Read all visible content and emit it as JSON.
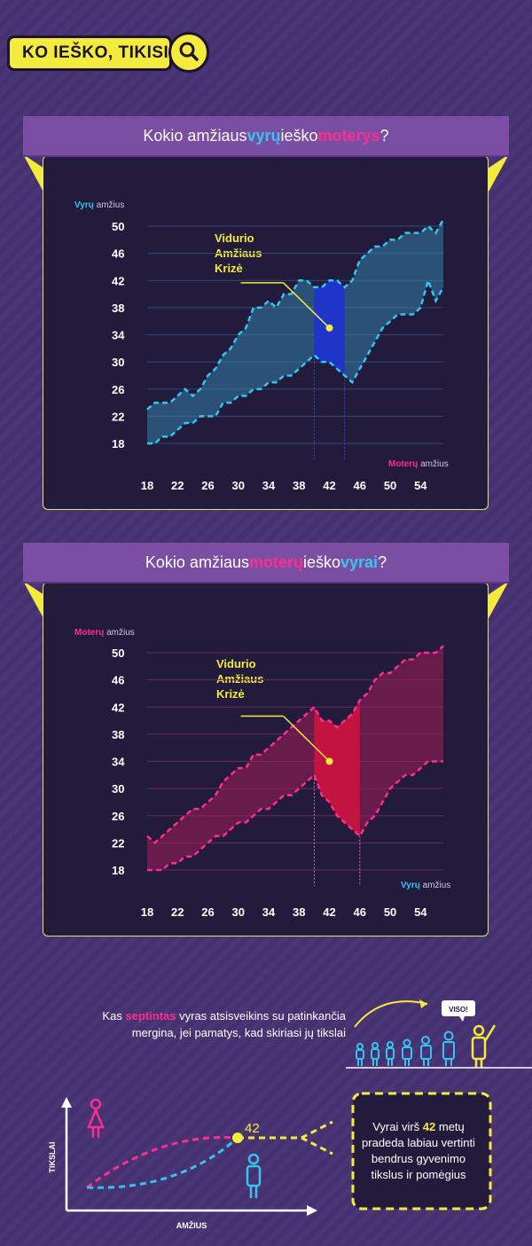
{
  "header": {
    "title": "KO IEŠKO, TIKISI",
    "search_icon": "search-icon"
  },
  "colors": {
    "blue": "#36c5f0",
    "pink": "#ff2d8e",
    "yellow": "#f4eb3d",
    "panel": "#231b3b",
    "banner": "#7a4fa3"
  },
  "chart1": {
    "banner": {
      "part1": "Kokio amžiaus ",
      "hl1": "vyrų",
      "part2": " ieško ",
      "hl2": "moterys",
      "part3": "?"
    },
    "ylabel_hl": "Vyrų",
    "ylabel_rest": " amžius",
    "xlabel_hl": "Moterų",
    "xlabel_rest": " amžius",
    "annotation": [
      "Vidurio",
      "Amžiaus",
      "Krizė"
    ]
  },
  "chart2": {
    "banner": {
      "part1": "Kokio amžiaus ",
      "hl1": "moterų",
      "part2": " ieško ",
      "hl2": "vyrai",
      "part3": "?"
    },
    "ylabel_hl": "Moterų",
    "ylabel_rest": " amžius",
    "xlabel_hl": "Vyrų",
    "xlabel_rest": " amžius",
    "annotation": [
      "Vidurio",
      "Amžiaus",
      "Krizė"
    ]
  },
  "chart_data": [
    {
      "type": "area",
      "title": "Kokio amžiaus vyrų ieško moterys?",
      "xlabel": "Moterų amžius",
      "ylabel": "Vyrų amžius",
      "xticks": [
        18,
        22,
        26,
        30,
        34,
        38,
        42,
        46,
        50,
        54
      ],
      "yticks": [
        18,
        22,
        26,
        30,
        34,
        38,
        42,
        46,
        50
      ],
      "xlim": [
        18,
        57
      ],
      "ylim": [
        18,
        50
      ],
      "highlight_range": [
        40,
        44
      ],
      "annotation_point": [
        42,
        35
      ],
      "series": [
        {
          "name": "upper",
          "x": [
            18,
            19,
            20,
            21,
            22,
            23,
            24,
            25,
            26,
            27,
            28,
            29,
            30,
            31,
            32,
            33,
            34,
            35,
            36,
            37,
            38,
            39,
            40,
            41,
            42,
            43,
            44,
            45,
            46,
            47,
            48,
            49,
            50,
            51,
            52,
            53,
            54,
            55,
            56,
            57
          ],
          "values": [
            23,
            24,
            24,
            24,
            25,
            26,
            25,
            26,
            28,
            29,
            31,
            32,
            34,
            35,
            38,
            38,
            39,
            38,
            40,
            40,
            42,
            42,
            41,
            41,
            42,
            42,
            41,
            42,
            45,
            46,
            47,
            47,
            48,
            48,
            49,
            49,
            49,
            50,
            49,
            51
          ]
        },
        {
          "name": "lower",
          "x": [
            18,
            19,
            20,
            21,
            22,
            23,
            24,
            25,
            26,
            27,
            28,
            29,
            30,
            31,
            32,
            33,
            34,
            35,
            36,
            37,
            38,
            39,
            40,
            41,
            42,
            43,
            44,
            45,
            46,
            47,
            48,
            49,
            50,
            51,
            52,
            53,
            54,
            55,
            56,
            57
          ],
          "values": [
            18,
            18,
            19,
            19,
            20,
            21,
            21,
            22,
            22,
            22,
            24,
            24,
            25,
            25,
            26,
            26,
            27,
            27,
            28,
            28,
            29,
            30,
            31,
            30,
            30,
            29,
            28,
            27,
            29,
            31,
            33,
            35,
            36,
            37,
            37,
            37,
            38,
            42,
            39,
            41
          ]
        }
      ]
    },
    {
      "type": "area",
      "title": "Kokio amžiaus moterų ieško vyrai?",
      "xlabel": "Vyrų amžius",
      "ylabel": "Moterų amžius",
      "xticks": [
        18,
        22,
        26,
        30,
        34,
        38,
        42,
        46,
        50,
        54
      ],
      "yticks": [
        18,
        22,
        26,
        30,
        34,
        38,
        42,
        46,
        50
      ],
      "xlim": [
        18,
        57
      ],
      "ylim": [
        18,
        50
      ],
      "highlight_range": [
        40,
        46
      ],
      "annotation_point": [
        42,
        34
      ],
      "series": [
        {
          "name": "upper",
          "x": [
            18,
            19,
            20,
            21,
            22,
            23,
            24,
            25,
            26,
            27,
            28,
            29,
            30,
            31,
            32,
            33,
            34,
            35,
            36,
            37,
            38,
            39,
            40,
            41,
            42,
            43,
            44,
            45,
            46,
            47,
            48,
            49,
            50,
            51,
            52,
            53,
            54,
            55,
            56,
            57
          ],
          "values": [
            23,
            22,
            23,
            24,
            25,
            26,
            27,
            27,
            28,
            29,
            31,
            32,
            33,
            33,
            35,
            35,
            36,
            37,
            38,
            39,
            40,
            41,
            42,
            40,
            40,
            39,
            40,
            41,
            43,
            44,
            46,
            47,
            47,
            48,
            49,
            49,
            50,
            50,
            50,
            51
          ]
        },
        {
          "name": "lower",
          "x": [
            18,
            19,
            20,
            21,
            22,
            23,
            24,
            25,
            26,
            27,
            28,
            29,
            30,
            31,
            32,
            33,
            34,
            35,
            36,
            37,
            38,
            39,
            40,
            41,
            42,
            43,
            44,
            45,
            46,
            47,
            48,
            49,
            50,
            51,
            52,
            53,
            54,
            55,
            56,
            57
          ],
          "values": [
            18,
            18,
            18,
            19,
            19,
            20,
            20,
            21,
            22,
            23,
            23,
            24,
            25,
            25,
            26,
            27,
            27,
            28,
            29,
            29,
            30,
            31,
            32,
            29,
            28,
            26,
            25,
            24,
            23,
            25,
            26,
            28,
            30,
            31,
            32,
            32,
            33,
            34,
            34,
            34
          ]
        }
      ]
    }
  ],
  "bottom": {
    "note_prefix": "Kas ",
    "note_hl": "septintas",
    "note_line1_rest": " vyras atsisveikins su patinkančia",
    "note_line2": "mergina, jei pamatys, kad skiriasi jų tikslai",
    "speech": "VISO!",
    "graph_value": "42",
    "graph_xlabel": "AMŽIUS",
    "graph_ylabel": "TIKSLAI",
    "box_line1_a": "Vyrai virš ",
    "box_line1_hl": "42",
    "box_line1_b": " metų",
    "box_rest": "pradeda labiau vertinti bendrus gyvenimo tikslus ir pomėgius"
  }
}
